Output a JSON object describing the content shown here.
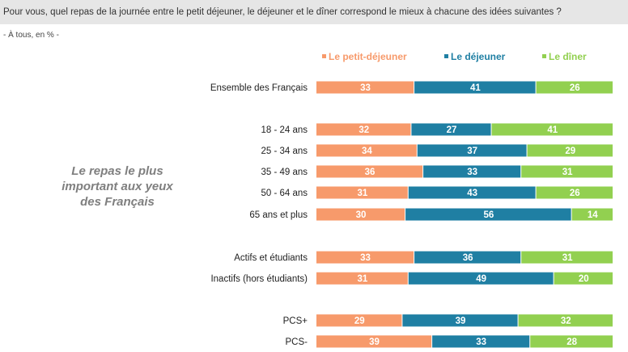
{
  "header": {
    "question": "Pour vous, quel repas de la journée entre le petit déjeuner, le déjeuner et le dîner correspond le mieux à chacune des idées suivantes ?",
    "base": "- À tous, en % -"
  },
  "caption": {
    "lines": [
      "Le repas le plus",
      "important aux yeux",
      "des Français"
    ]
  },
  "colors": {
    "petit_dejeuner": "#f79a6b",
    "dejeuner": "#1f7fa3",
    "diner": "#92d050"
  },
  "chart_data": {
    "type": "bar",
    "orientation": "horizontal",
    "stacked": true,
    "percent": true,
    "legend_position": "top-right",
    "series": [
      {
        "name": "Le petit-déjeuner",
        "color": "#f79a6b",
        "values": [
          33,
          32,
          34,
          36,
          31,
          30,
          33,
          31,
          29,
          39
        ]
      },
      {
        "name": "Le déjeuner",
        "color": "#1f7fa3",
        "values": [
          41,
          27,
          37,
          33,
          43,
          56,
          36,
          49,
          39,
          33
        ]
      },
      {
        "name": "Le dîner",
        "color": "#92d050",
        "values": [
          26,
          41,
          29,
          31,
          26,
          14,
          31,
          20,
          32,
          28
        ]
      }
    ],
    "categories": [
      "Ensemble des Français",
      "18 - 24 ans",
      "25 - 34 ans",
      "35 - 49 ans",
      "50 - 64 ans",
      "65 ans et plus",
      "Actifs et étudiants",
      "Inactifs (hors étudiants)",
      "PCS+",
      "PCS-"
    ]
  }
}
